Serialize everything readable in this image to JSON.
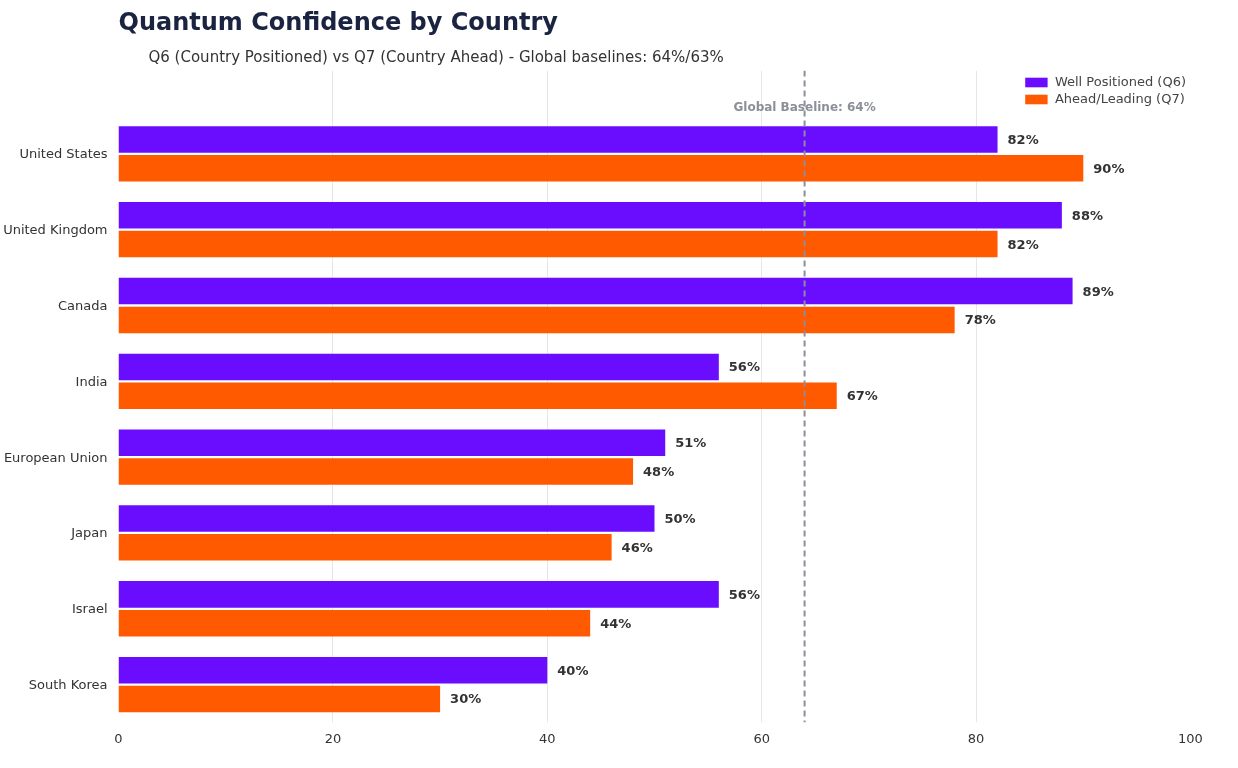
{
  "chart_data": {
    "type": "bar",
    "orientation": "horizontal",
    "title": "Quantum Confidence by Country",
    "subtitle": "Q6 (Country Positioned) vs Q7 (Country Ahead) - Global baselines: 64%/63%",
    "categories": [
      "United States",
      "United Kingdom",
      "Canada",
      "India",
      "European Union",
      "Japan",
      "Israel",
      "South Korea"
    ],
    "series": [
      {
        "name": "Well Positioned (Q6)",
        "color": "#6a0dff",
        "values": [
          82,
          88,
          89,
          56,
          51,
          50,
          56,
          40
        ],
        "value_labels": [
          "82%",
          "88%",
          "89%",
          "56%",
          "51%",
          "50%",
          "56%",
          "40%"
        ]
      },
      {
        "name": "Ahead/Leading (Q7)",
        "color": "#ff5a00",
        "values": [
          90,
          82,
          78,
          67,
          48,
          46,
          44,
          30
        ],
        "value_labels": [
          "90%",
          "82%",
          "78%",
          "67%",
          "48%",
          "46%",
          "44%",
          "30%"
        ]
      }
    ],
    "xlim": [
      0,
      100
    ],
    "xticks": [
      0,
      20,
      40,
      60,
      80,
      100
    ],
    "grid": "x",
    "legend": "top right",
    "ref_lines": [
      {
        "axis": "x",
        "value": 64,
        "label": "Global Baseline: 64%",
        "color": "#8a8f99",
        "line_style": "dashed"
      }
    ]
  }
}
